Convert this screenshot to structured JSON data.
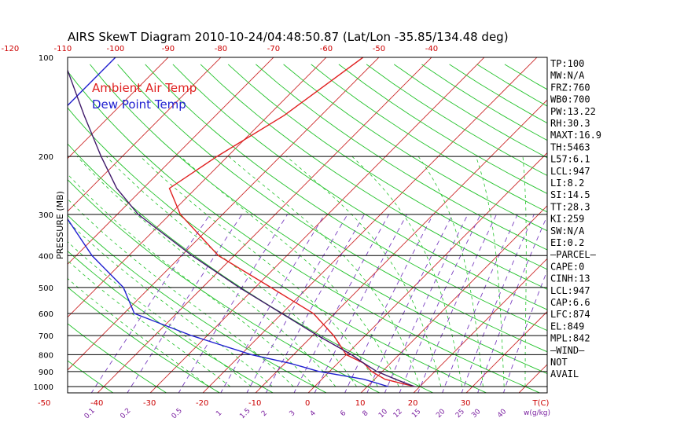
{
  "chart_data": {
    "type": "line",
    "title": "AIRS SkewT Diagram 2010-10-24/04:48:50.87 (Lat/Lon -35.85/134.48 deg)",
    "ylabel": "PRESSURE (MB)",
    "y_scale": "log",
    "ylim": [
      1000,
      100
    ],
    "pressure_ticks": [
      "100",
      "200",
      "300",
      "400",
      "500",
      "600",
      "700",
      "800",
      "900",
      "1000"
    ],
    "bottom_temp_ticks": [
      "-50",
      "-40",
      "-30",
      "-20",
      "-10",
      "0",
      "10",
      "20",
      "30"
    ],
    "bottom_temp_label": "T(C)",
    "top_temp_ticks": [
      "-120",
      "-110",
      "-100",
      "-90",
      "-80",
      "-70",
      "-60",
      "-50",
      "-40"
    ],
    "mixing_ratio_ticks": [
      "0.1",
      "0.2",
      "0.5",
      "1",
      "1.5",
      "2",
      "3",
      "4",
      "6",
      "8",
      "10",
      "12",
      "15",
      "20",
      "25",
      "30",
      "40"
    ],
    "mixing_ratio_label": "w(g/kg)",
    "legend": [
      {
        "name": "Ambient Air Temp",
        "color": "#e02020"
      },
      {
        "name": "Dew Point Temp",
        "color": "#2020d0"
      }
    ],
    "series": [
      {
        "name": "Ambient Air Temp",
        "color": "#e02020",
        "points": [
          [
            1000,
            19
          ],
          [
            950,
            12
          ],
          [
            900,
            8
          ],
          [
            850,
            5
          ],
          [
            800,
            0
          ],
          [
            700,
            -6
          ],
          [
            600,
            -14
          ],
          [
            500,
            -27
          ],
          [
            400,
            -43
          ],
          [
            300,
            -58
          ],
          [
            250,
            -65
          ],
          [
            200,
            -62
          ],
          [
            150,
            -57
          ],
          [
            100,
            -53
          ]
        ]
      },
      {
        "name": "Dew Point Temp",
        "color": "#2020d0",
        "points": [
          [
            1000,
            14
          ],
          [
            950,
            8
          ],
          [
            900,
            -2
          ],
          [
            850,
            -9
          ],
          [
            800,
            -18
          ],
          [
            700,
            -33
          ],
          [
            600,
            -48
          ],
          [
            500,
            -55
          ],
          [
            400,
            -67
          ],
          [
            300,
            -80
          ],
          [
            250,
            -88
          ],
          [
            200,
            -95
          ],
          [
            150,
            -100
          ],
          [
            100,
            -100
          ]
        ]
      },
      {
        "name": "Parcel",
        "color": "#401a6a",
        "points": [
          [
            1000,
            19
          ],
          [
            950,
            14
          ],
          [
            900,
            9
          ],
          [
            850,
            5
          ],
          [
            800,
            1
          ],
          [
            700,
            -9
          ],
          [
            600,
            -20
          ],
          [
            500,
            -33
          ],
          [
            400,
            -48
          ],
          [
            300,
            -66
          ],
          [
            250,
            -75
          ],
          [
            200,
            -84
          ],
          [
            150,
            -95
          ],
          [
            100,
            -110
          ]
        ]
      }
    ],
    "indices": [
      "TP:100",
      "MW:N/A",
      "FRZ:760",
      "WB0:700",
      "PW:13.22",
      "RH:30.3",
      "MAXT:16.9",
      "TH:5463",
      "L57:6.1",
      "LCL:947",
      "LI:8.2",
      "SI:14.5",
      "TT:28.3",
      "KI:259",
      "SW:N/A",
      "EI:0.2",
      "—PARCEL—",
      "CAPE:0",
      "CINH:13",
      "LCL:947",
      "CAP:6.6",
      "LFC:874",
      "EL:849",
      "MPL:842",
      "—WIND—",
      "NOT",
      "AVAIL"
    ]
  }
}
